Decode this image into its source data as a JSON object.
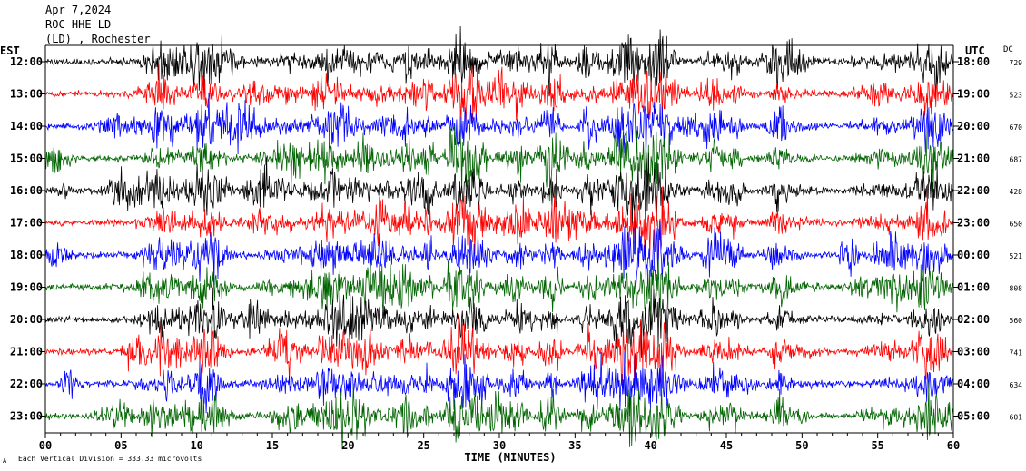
{
  "header": {
    "line1": "Apr 7,2024",
    "line2": "ROC HHE LD --",
    "line3": "(LD) , Rochester"
  },
  "labels": {
    "left_tz": "EST",
    "right_tz": "UTC",
    "dc": "DC",
    "xlabel": "TIME (MINUTES)",
    "footer": "Each Vertical Division = 333.33 microvolts",
    "footer_mark": "A"
  },
  "colors": {
    "black": "#000000",
    "red": "#ff0000",
    "blue": "#0000ff",
    "green": "#006400"
  },
  "chart_data": {
    "type": "line",
    "title": "",
    "xlabel": "TIME (MINUTES)",
    "ylabel": "",
    "xlim": [
      0,
      60
    ],
    "x_ticks": [
      "00",
      "05",
      "10",
      "15",
      "20",
      "25",
      "30",
      "35",
      "40",
      "45",
      "50",
      "55",
      "60"
    ],
    "grid": false,
    "rows": [
      {
        "est": "12:00",
        "utc": "18:00",
        "dc": "729",
        "color": "black"
      },
      {
        "est": "13:00",
        "utc": "19:00",
        "dc": "523",
        "color": "red"
      },
      {
        "est": "14:00",
        "utc": "20:00",
        "dc": "670",
        "color": "blue"
      },
      {
        "est": "15:00",
        "utc": "21:00",
        "dc": "687",
        "color": "green"
      },
      {
        "est": "16:00",
        "utc": "22:00",
        "dc": "428",
        "color": "black"
      },
      {
        "est": "17:00",
        "utc": "23:00",
        "dc": "650",
        "color": "red"
      },
      {
        "est": "18:00",
        "utc": "00:00",
        "dc": "521",
        "color": "blue"
      },
      {
        "est": "19:00",
        "utc": "01:00",
        "dc": "808",
        "color": "green"
      },
      {
        "est": "20:00",
        "utc": "02:00",
        "dc": "560",
        "color": "black"
      },
      {
        "est": "21:00",
        "utc": "03:00",
        "dc": "741",
        "color": "red"
      },
      {
        "est": "22:00",
        "utc": "04:00",
        "dc": "634",
        "color": "blue"
      },
      {
        "est": "23:00",
        "utc": "05:00",
        "dc": "601",
        "color": "green"
      }
    ]
  }
}
